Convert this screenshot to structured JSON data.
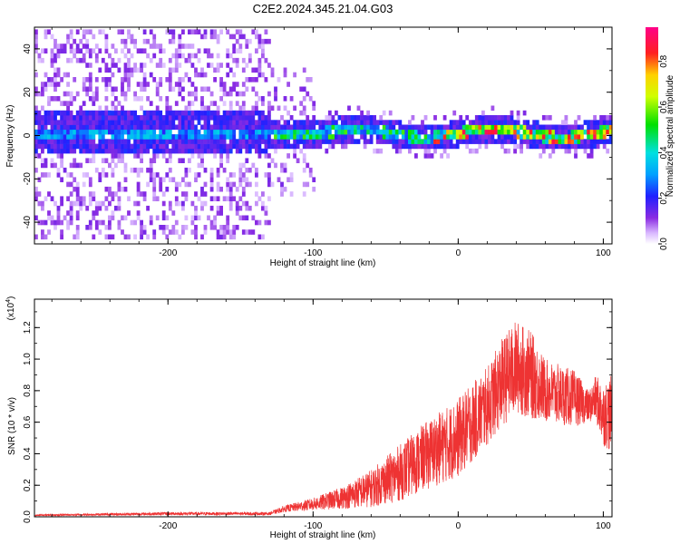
{
  "figure_title": "C2E2.2024.345.21.04.G03",
  "chart_data": [
    {
      "type": "heatmap",
      "title": "C2E2.2024.345.21.04.G03",
      "xlabel": "Height of straight line (km)",
      "ylabel": "Frequency (Hz)",
      "xlim": [
        -292,
        106
      ],
      "ylim": [
        -50,
        50
      ],
      "x_ticks": [
        -200,
        -100,
        0,
        100
      ],
      "y_ticks": [
        -40,
        -20,
        0,
        20,
        40
      ],
      "colorbar": {
        "label": "Normalized spectral amplitude",
        "range": [
          0,
          0.95
        ],
        "ticks": [
          0.0,
          0.2,
          0.4,
          0.6,
          0.8
        ]
      },
      "grid": false
    },
    {
      "type": "line",
      "xlabel": "Height of straight line (km)",
      "ylabel": "SNR (10 * v/v)",
      "y_multiplier": "(x10",
      "y_multiplier_exp": "4",
      "xlim": [
        -292,
        106
      ],
      "ylim": [
        0,
        1.38
      ],
      "x_ticks": [
        -200,
        -100,
        0,
        100
      ],
      "y_ticks": [
        0.0,
        0.2,
        0.4,
        0.6,
        0.8,
        1.0,
        1.2
      ],
      "series": [
        {
          "color": "#ee3333",
          "envelope": {
            "x": [
              -292,
              -200,
              -130,
              -120,
              -100,
              -80,
              -60,
              -40,
              -20,
              0,
              20,
              30,
              40,
              50,
              60,
              80,
              90,
              95,
              100,
              106
            ],
            "y": [
              0.01,
              0.02,
              0.02,
              0.05,
              0.08,
              0.12,
              0.18,
              0.28,
              0.4,
              0.5,
              0.7,
              0.85,
              0.95,
              0.9,
              0.8,
              0.75,
              0.7,
              0.75,
              0.65,
              0.65
            ],
            "spread": [
              0.005,
              0.01,
              0.01,
              0.02,
              0.04,
              0.07,
              0.12,
              0.18,
              0.22,
              0.25,
              0.25,
              0.28,
              0.3,
              0.28,
              0.2,
              0.18,
              0.1,
              0.15,
              0.2,
              0.25
            ]
          }
        }
      ],
      "grid": false
    }
  ]
}
